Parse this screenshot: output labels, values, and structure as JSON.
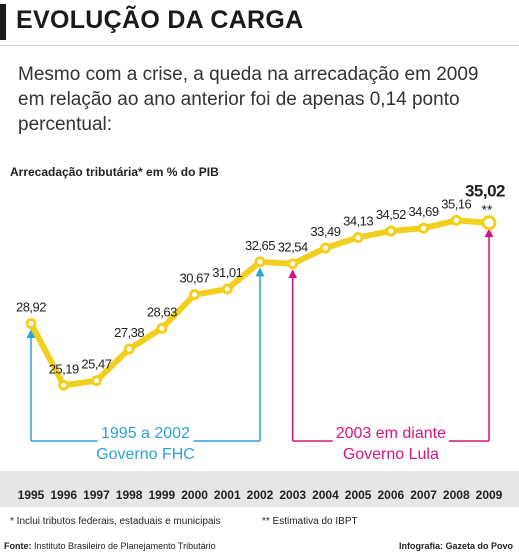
{
  "header": {
    "title": "EVOLUÇÃO DA CARGA",
    "subtitle": "Mesmo com a crise, a queda na arrecadação em 2009 em relação ao ano anterior foi de apenas 0,14 ponto percentual:"
  },
  "chart_data": {
    "type": "line",
    "ylabel": "Arrecadação tributária* em % do PIB",
    "categories": [
      "1995",
      "1996",
      "1997",
      "1998",
      "1999",
      "2000",
      "2001",
      "2002",
      "2003",
      "2004",
      "2005",
      "2006",
      "2007",
      "2008",
      "2009"
    ],
    "series": [
      {
        "values": [
          28.92,
          25.19,
          25.47,
          27.38,
          28.63,
          30.67,
          31.01,
          32.65,
          32.54,
          33.49,
          34.13,
          34.52,
          34.69,
          35.16,
          35.02
        ],
        "labels": [
          "28,92",
          "25,19",
          "25,47",
          "27,38",
          "28,63",
          "30,67",
          "31,01",
          "32,65",
          "32,54",
          "33,49",
          "34,13",
          "34,52",
          "34,69",
          "35,16",
          "35,02"
        ]
      }
    ],
    "ylim": [
      22,
      37
    ],
    "grid": false,
    "annotations": {
      "estimate_marker": "**",
      "period1_years": "1995 a 2002",
      "period1_name": "Governo FHC",
      "period2_years": "2003 em diante",
      "period2_name": "Governo Lula"
    },
    "colors": {
      "line": "#f2cf1f",
      "period1": "#2aa3d6",
      "period2": "#d4157f",
      "axis_band": "#e6e6e6"
    }
  },
  "footer": {
    "note1": "* Inclui tributos federais, estaduais e municipais",
    "note2": "** Estimativa do IBPT",
    "source_label": "Fonte:",
    "source": "Instituto Brasileiro de Planejamento Tributário",
    "credit": "Infografia: Gazeta do Povo"
  }
}
